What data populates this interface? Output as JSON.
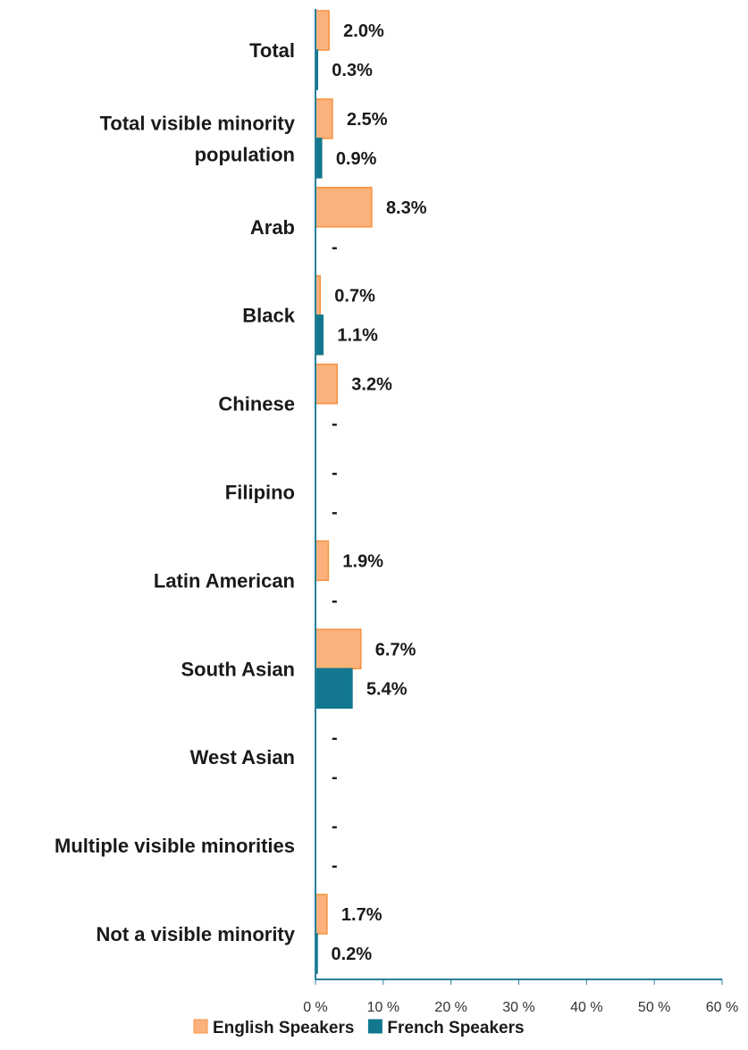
{
  "chart_data": {
    "type": "bar",
    "orientation": "horizontal",
    "categories": [
      [
        "Total"
      ],
      [
        "Total visible minority",
        "population"
      ],
      [
        "Arab"
      ],
      [
        "Black"
      ],
      [
        "Chinese"
      ],
      [
        "Filipino"
      ],
      [
        "Latin American"
      ],
      [
        "South Asian"
      ],
      [
        "West Asian"
      ],
      [
        "Multiple visible minorities"
      ],
      [
        "Not a visible minority"
      ]
    ],
    "series": [
      {
        "name": "English Speakers",
        "color": "#fbb27c",
        "stroke": "#f7923f",
        "values": [
          2.0,
          2.5,
          8.3,
          0.7,
          3.2,
          null,
          1.9,
          6.7,
          null,
          null,
          1.7
        ],
        "labels": [
          "2.0%",
          "2.5%",
          "8.3%",
          "0.7%",
          "3.2%",
          "-",
          "1.9%",
          "6.7%",
          "-",
          "-",
          "1.7%"
        ]
      },
      {
        "name": "French Speakers",
        "color": "#13788f",
        "stroke": "#13788f",
        "values": [
          0.3,
          0.9,
          null,
          1.1,
          null,
          null,
          null,
          5.4,
          null,
          null,
          0.2
        ],
        "labels": [
          "0.3%",
          "0.9%",
          "-",
          "1.1%",
          "-",
          "-",
          "-",
          "5.4%",
          "-",
          "-",
          "0.2%"
        ]
      }
    ],
    "xlim": [
      0,
      60
    ],
    "xticks": [
      0,
      10,
      20,
      30,
      40,
      50,
      60
    ],
    "xtick_labels": [
      "0 %",
      "10 %",
      "20 %",
      "30 %",
      "40 %",
      "50 %",
      "60 %"
    ],
    "grid": false,
    "legend_position": "bottom"
  }
}
